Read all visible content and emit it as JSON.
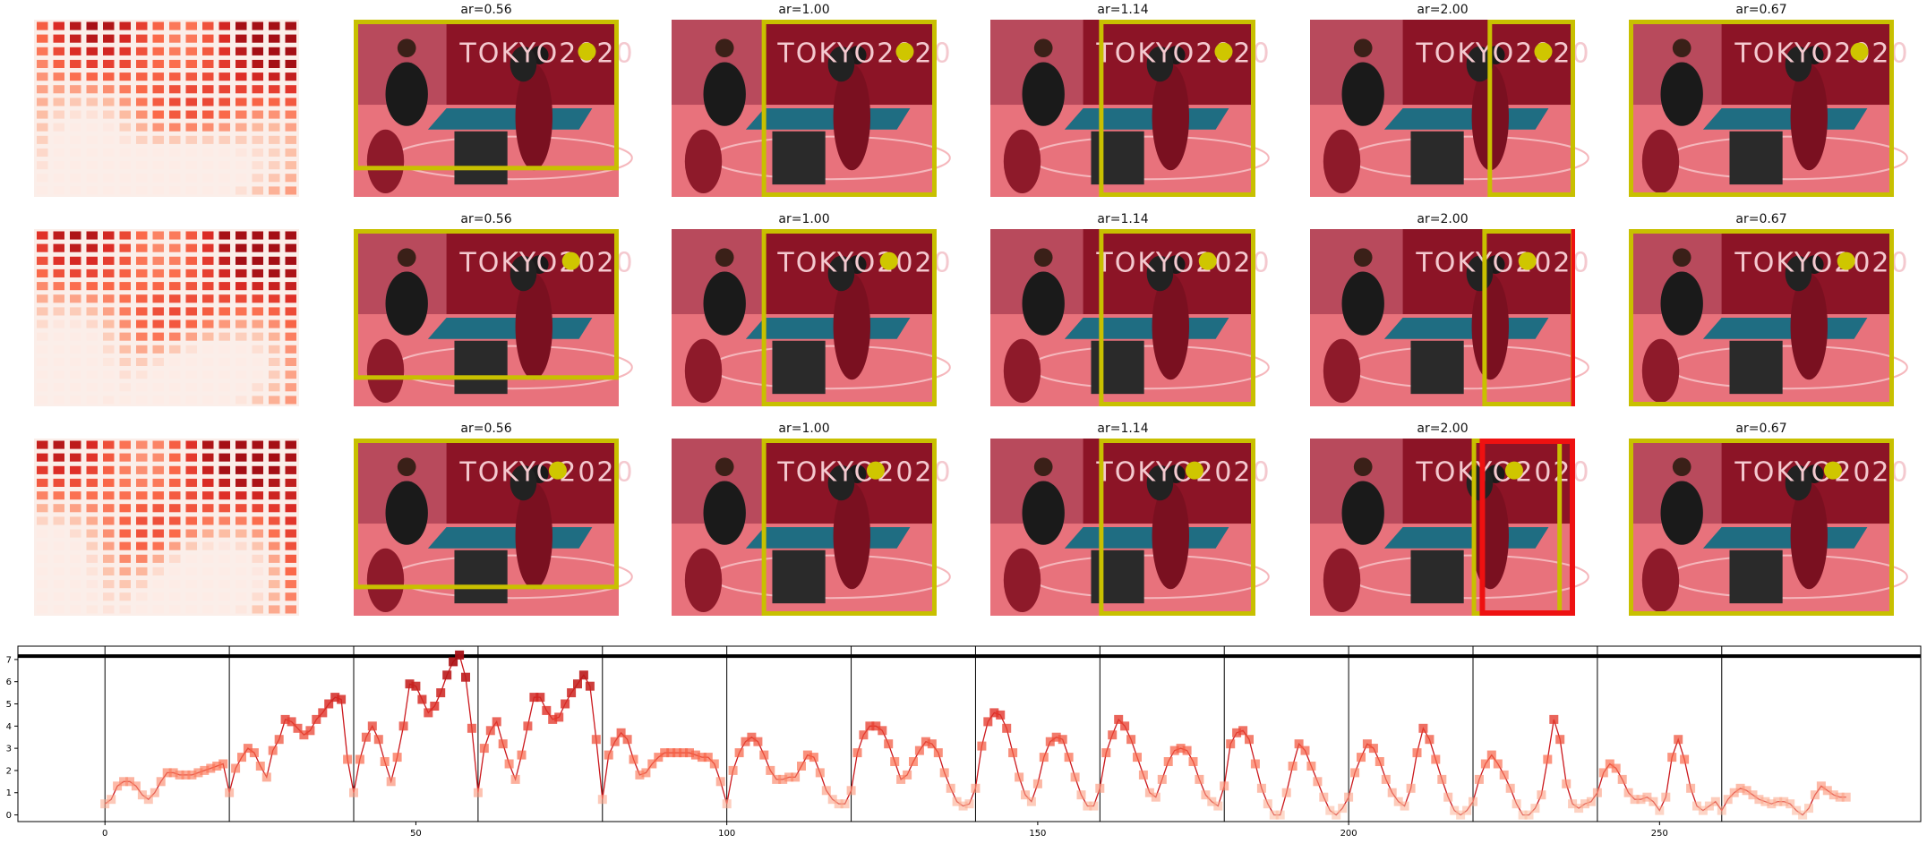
{
  "colors": {
    "heat_low": "#fdece6",
    "heat_high": "#a50f15",
    "crop_box": "#c8c000",
    "crop_box_alt": "#ee1111",
    "line": "#cb181d",
    "photo_bg": "#8c1426",
    "floor": "#e8727c",
    "table": "#1f6d82"
  },
  "icons": {
    "photo": "photo-image-icon",
    "focus_dot": "focus-dot-icon"
  },
  "rows": [
    {
      "panels": [
        {
          "title": "ar=0.56"
        },
        {
          "title": "ar=1.00"
        },
        {
          "title": "ar=1.14"
        },
        {
          "title": "ar=2.00"
        },
        {
          "title": "ar=0.67"
        }
      ]
    },
    {
      "panels": [
        {
          "title": "ar=0.56"
        },
        {
          "title": "ar=1.00"
        },
        {
          "title": "ar=1.14"
        },
        {
          "title": "ar=2.00"
        },
        {
          "title": "ar=0.67"
        }
      ]
    },
    {
      "panels": [
        {
          "title": "ar=0.56"
        },
        {
          "title": "ar=1.00"
        },
        {
          "title": "ar=1.14"
        },
        {
          "title": "ar=2.00"
        },
        {
          "title": "ar=0.67"
        }
      ]
    }
  ],
  "photo_text": "TOKYO2020",
  "chart_data": {
    "type": "line",
    "x_ticks": [
      0,
      50,
      100,
      150,
      200,
      250
    ],
    "y_ticks": [
      0,
      1,
      2,
      3,
      4,
      5,
      6,
      7
    ],
    "xlim": [
      -14,
      292
    ],
    "ylim": [
      -0.3,
      7.6
    ],
    "hline": 7.15,
    "vlines": [
      0,
      20,
      40,
      60,
      80,
      100,
      120,
      140,
      160,
      180,
      200,
      220,
      240,
      260
    ],
    "grid": false,
    "legend": "none",
    "series": [
      {
        "values": [
          0.5,
          0.7,
          1.3,
          1.5,
          1.5,
          1.3,
          0.9,
          0.7,
          1.0,
          1.5,
          1.9,
          1.9,
          1.8,
          1.8,
          1.8,
          1.9,
          2.0,
          2.1,
          2.2,
          2.3,
          1.0,
          2.1,
          2.6,
          3.0,
          2.8,
          2.2,
          1.7,
          2.9,
          3.4,
          4.3,
          4.2,
          3.9,
          3.6,
          3.8,
          4.3,
          4.6,
          5.0,
          5.3,
          5.2,
          2.5,
          1.0,
          2.5,
          3.5,
          4.0,
          3.4,
          2.4,
          1.5,
          2.6,
          4.0,
          5.9,
          5.8,
          5.2,
          4.6,
          4.9,
          5.5,
          6.3,
          6.9,
          7.2,
          6.2,
          3.9,
          1.0,
          3.0,
          3.8,
          4.2,
          3.2,
          2.3,
          1.6,
          2.7,
          4.0,
          5.3,
          5.3,
          4.7,
          4.3,
          4.4,
          5.0,
          5.5,
          5.9,
          6.3,
          5.8,
          3.4,
          0.7,
          2.7,
          3.3,
          3.7,
          3.4,
          2.5,
          1.8,
          1.9,
          2.3,
          2.6,
          2.8,
          2.8,
          2.8,
          2.8,
          2.8,
          2.7,
          2.6,
          2.6,
          2.3,
          1.5,
          0.5,
          2.0,
          2.8,
          3.3,
          3.5,
          3.3,
          2.7,
          2.0,
          1.6,
          1.6,
          1.7,
          1.7,
          2.2,
          2.7,
          2.6,
          1.9,
          1.1,
          0.7,
          0.5,
          0.5,
          1.1,
          2.8,
          3.6,
          4.0,
          4.0,
          3.8,
          3.2,
          2.4,
          1.6,
          1.8,
          2.4,
          2.9,
          3.3,
          3.2,
          2.8,
          1.9,
          1.2,
          0.6,
          0.4,
          0.5,
          1.2,
          3.1,
          4.2,
          4.6,
          4.5,
          3.9,
          2.8,
          1.7,
          0.9,
          0.6,
          1.4,
          2.6,
          3.3,
          3.5,
          3.4,
          2.6,
          1.7,
          0.9,
          0.4,
          0.4,
          1.2,
          2.8,
          3.6,
          4.3,
          4.0,
          3.4,
          2.6,
          1.8,
          1.0,
          0.8,
          1.6,
          2.4,
          2.9,
          3.0,
          2.9,
          2.4,
          1.6,
          0.9,
          0.6,
          0.4,
          1.3,
          3.2,
          3.7,
          3.8,
          3.4,
          2.3,
          1.2,
          0.5,
          0.0,
          0.0,
          1.0,
          2.2,
          3.2,
          2.9,
          2.2,
          1.5,
          0.8,
          0.2,
          0.0,
          0.3,
          0.8,
          1.9,
          2.6,
          3.2,
          3.0,
          2.4,
          1.6,
          1.0,
          0.6,
          0.4,
          1.2,
          2.8,
          3.9,
          3.4,
          2.5,
          1.6,
          0.8,
          0.2,
          0.0,
          0.2,
          0.6,
          1.6,
          2.3,
          2.7,
          2.3,
          1.8,
          1.2,
          0.5,
          0.0,
          0.0,
          0.3,
          0.9,
          2.5,
          4.3,
          3.4,
          1.4,
          0.5,
          0.3,
          0.5,
          0.6,
          1.0,
          1.9,
          2.3,
          2.1,
          1.6,
          1.0,
          0.7,
          0.7,
          0.8,
          0.6,
          0.2,
          0.8,
          2.6,
          3.4,
          2.5,
          1.2,
          0.4,
          0.2,
          0.4,
          0.6,
          0.2,
          0.7,
          1.0,
          1.2,
          1.1,
          0.9,
          0.7,
          0.6,
          0.5,
          0.6,
          0.6,
          0.5,
          0.2,
          0.0,
          0.3,
          0.9,
          1.3,
          1.1,
          0.9,
          0.8,
          0.8
        ]
      }
    ]
  }
}
